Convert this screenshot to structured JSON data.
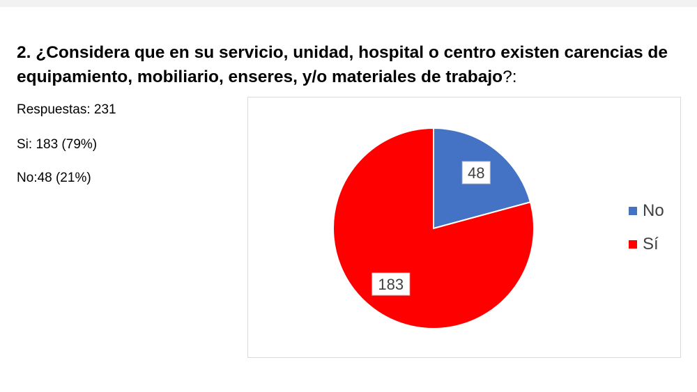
{
  "question": {
    "bold_text": "2. ¿Considera que en su servicio, unidad, hospital o centro existen carencias de equipamiento, mobiliario, enseres, y/o materiales de trabajo",
    "tail_text": "?:"
  },
  "stats": {
    "responses": "Respuestas: 231",
    "si": "Si: 183 (79%)",
    "no": "No:48 (21%)"
  },
  "chart_data": {
    "type": "pie",
    "categories": [
      "No",
      "Sí"
    ],
    "values": [
      48,
      183
    ],
    "data_labels": [
      "48",
      "183"
    ],
    "colors": [
      "#4472c4",
      "#ff0000"
    ],
    "start_angle_deg": 0,
    "legend_position": "right"
  }
}
